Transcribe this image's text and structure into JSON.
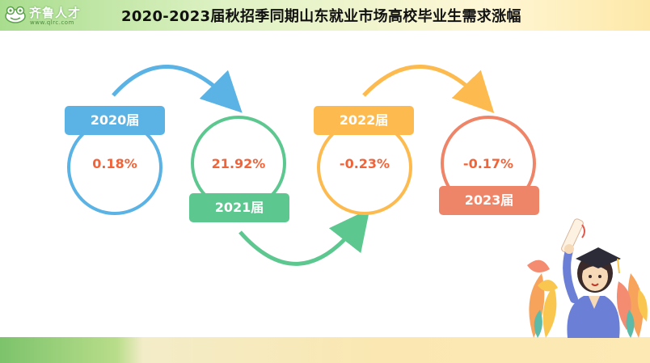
{
  "header": {
    "logo_text": "齐鲁人才",
    "logo_sub": "www.qlrc.com",
    "title": "2020-2023届秋招季同期山东就业市场高校毕业生需求涨幅"
  },
  "items": [
    {
      "label": "2020届",
      "value": "0.18%",
      "color": "#5ab3e4"
    },
    {
      "label": "2021届",
      "value": "21.92%",
      "color": "#5cc88f"
    },
    {
      "label": "2022届",
      "value": "-0.23%",
      "color": "#fdbb4f"
    },
    {
      "label": "2023届",
      "value": "-0.17%",
      "color": "#ef8568"
    }
  ],
  "decoration": {
    "illustration": "graduate-girl-with-diploma",
    "leaves": "autumn-leaves"
  }
}
